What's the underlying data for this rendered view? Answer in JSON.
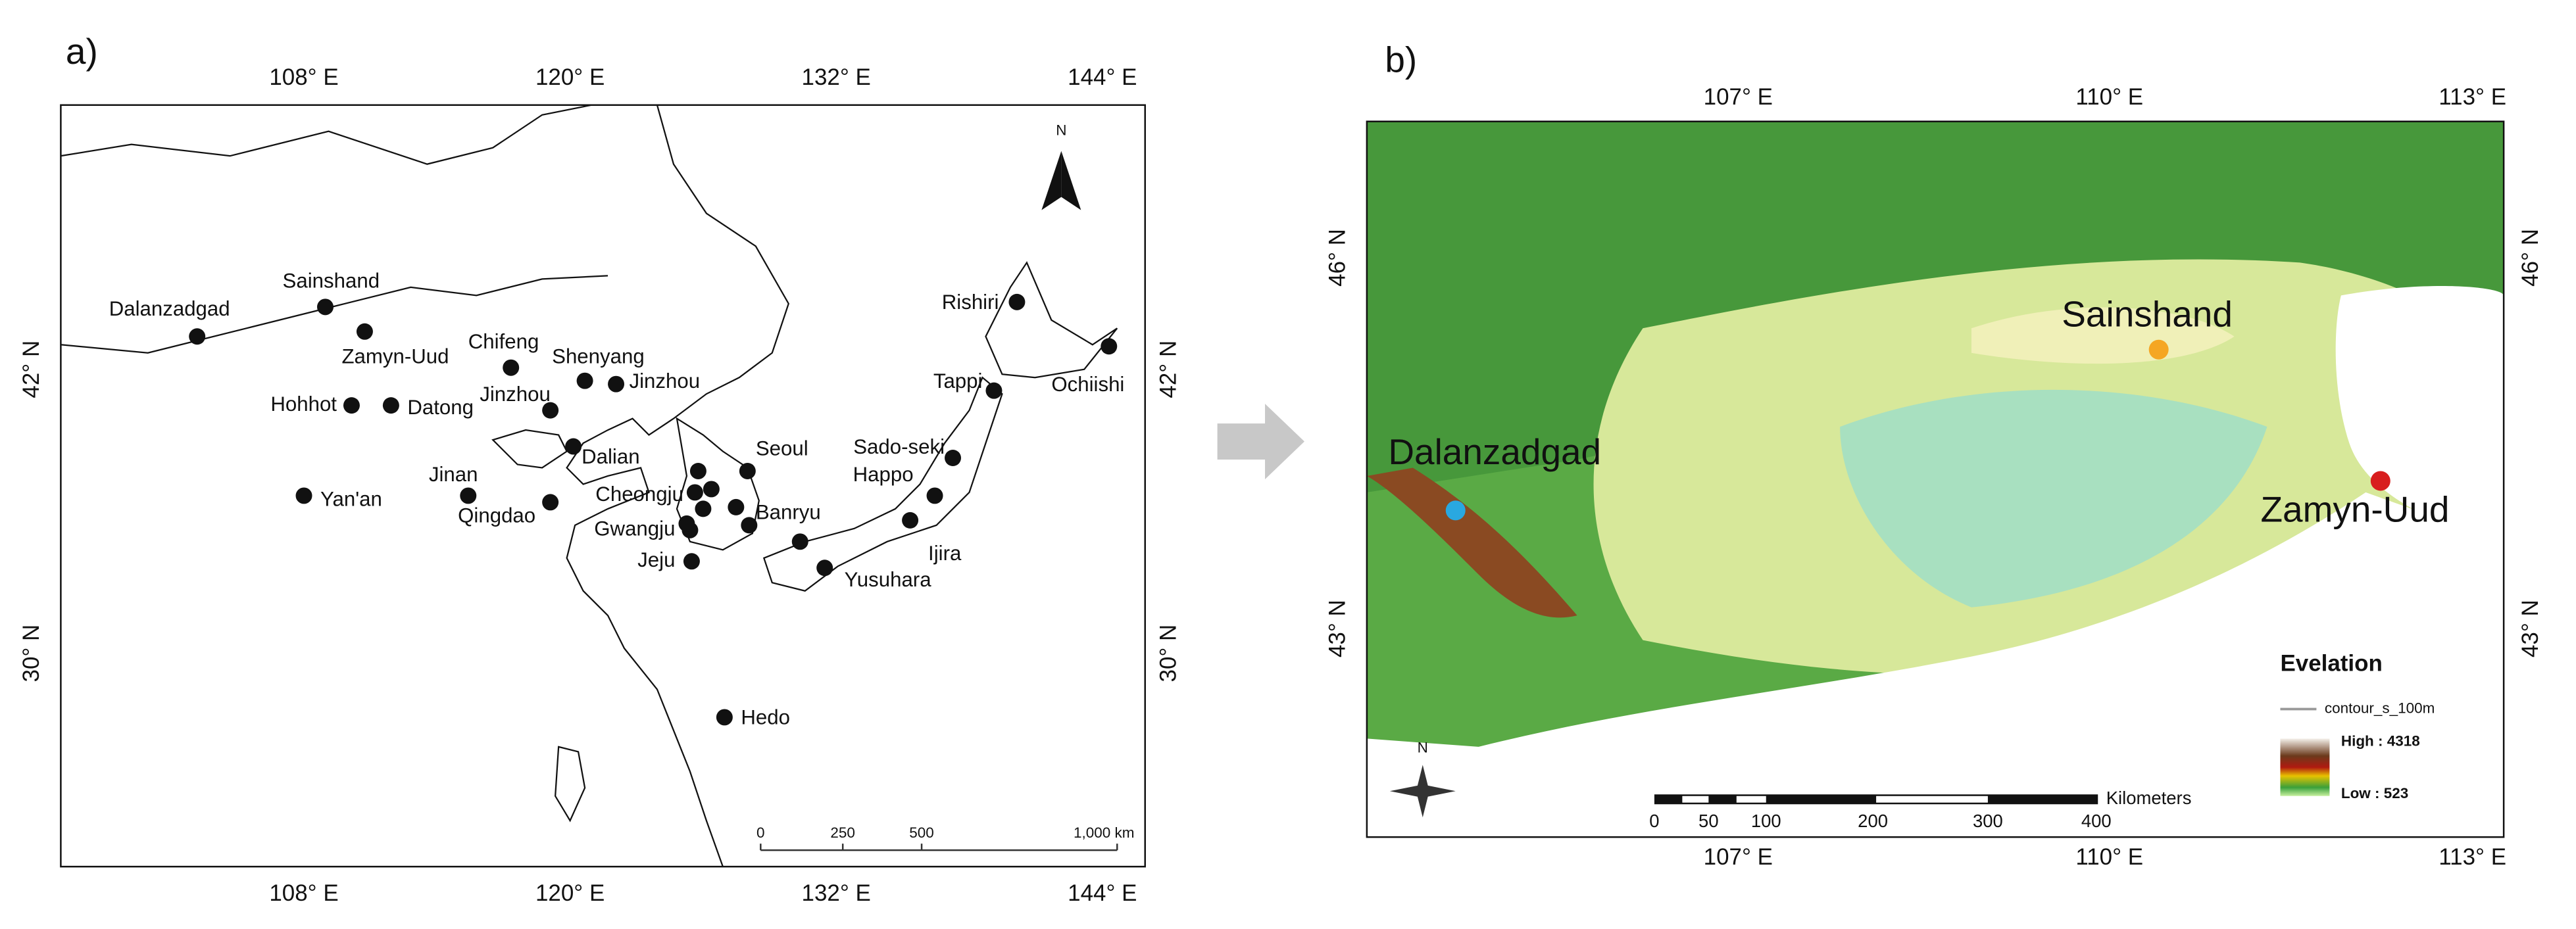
{
  "panel_a": {
    "label": "a)",
    "lon_ticks": [
      "108° E",
      "120° E",
      "132° E",
      "144° E"
    ],
    "lat_ticks": [
      "42° N",
      "30° N"
    ],
    "north": "N",
    "scale_labels": [
      "0",
      "250",
      "500",
      "1,000 km"
    ],
    "stations": [
      "Sainshand",
      "Dalanzadgad",
      "Zamyn-Uud",
      "Chifeng",
      "Shenyang",
      "Jinzhou",
      "Jinzhou",
      "Hohhot",
      "Datong",
      "Dalian",
      "Seoul",
      "Sado-seki",
      "Happo",
      "Tappi",
      "Rishiri",
      "Ochiishi",
      "Jinan",
      "Yan'an",
      "Qingdao",
      "Cheongju",
      "Gwangju",
      "Banryu",
      "Jeju",
      "Ijira",
      "Yusuhara",
      "Hedo"
    ]
  },
  "panel_b": {
    "label": "b)",
    "lon_ticks": [
      "107° E",
      "110° E",
      "113° E"
    ],
    "lat_ticks": [
      "46° N",
      "43° N"
    ],
    "north": "N",
    "places": [
      "Sainshand",
      "Dalanzadgad",
      "Zamyn-Uud"
    ],
    "legend": {
      "title": "Evelation",
      "contour": "contour_s_100m",
      "high": "High : 4318",
      "low": "Low : 523"
    },
    "scale_labels": [
      "0",
      "50",
      "100",
      "200",
      "300",
      "400"
    ],
    "scale_unit": "Kilometers"
  }
}
